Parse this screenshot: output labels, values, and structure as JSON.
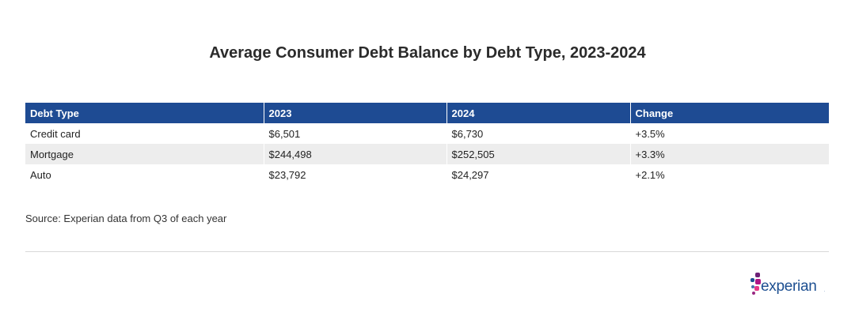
{
  "title": "Average Consumer Debt Balance by Debt Type, 2023-2024",
  "chart_data": {
    "type": "table",
    "title": "Average Consumer Debt Balance by Debt Type, 2023-2024",
    "columns": [
      "Debt Type",
      "2023",
      "2024",
      "Change"
    ],
    "rows": [
      [
        "Credit card",
        "$6,501",
        "$6,730",
        "+3.5%"
      ],
      [
        "Mortgage",
        "$244,498",
        "$252,505",
        "+3.3%"
      ],
      [
        "Auto",
        "$23,792",
        "$24,297",
        "+2.1%"
      ]
    ]
  },
  "source": "Source: Experian data from Q3 of each year",
  "logo": {
    "text": "experian",
    "trademark": "."
  },
  "colors": {
    "header_bg": "#1e4b93",
    "stripe_bg": "#ededed",
    "brand": "#1d4f91"
  }
}
